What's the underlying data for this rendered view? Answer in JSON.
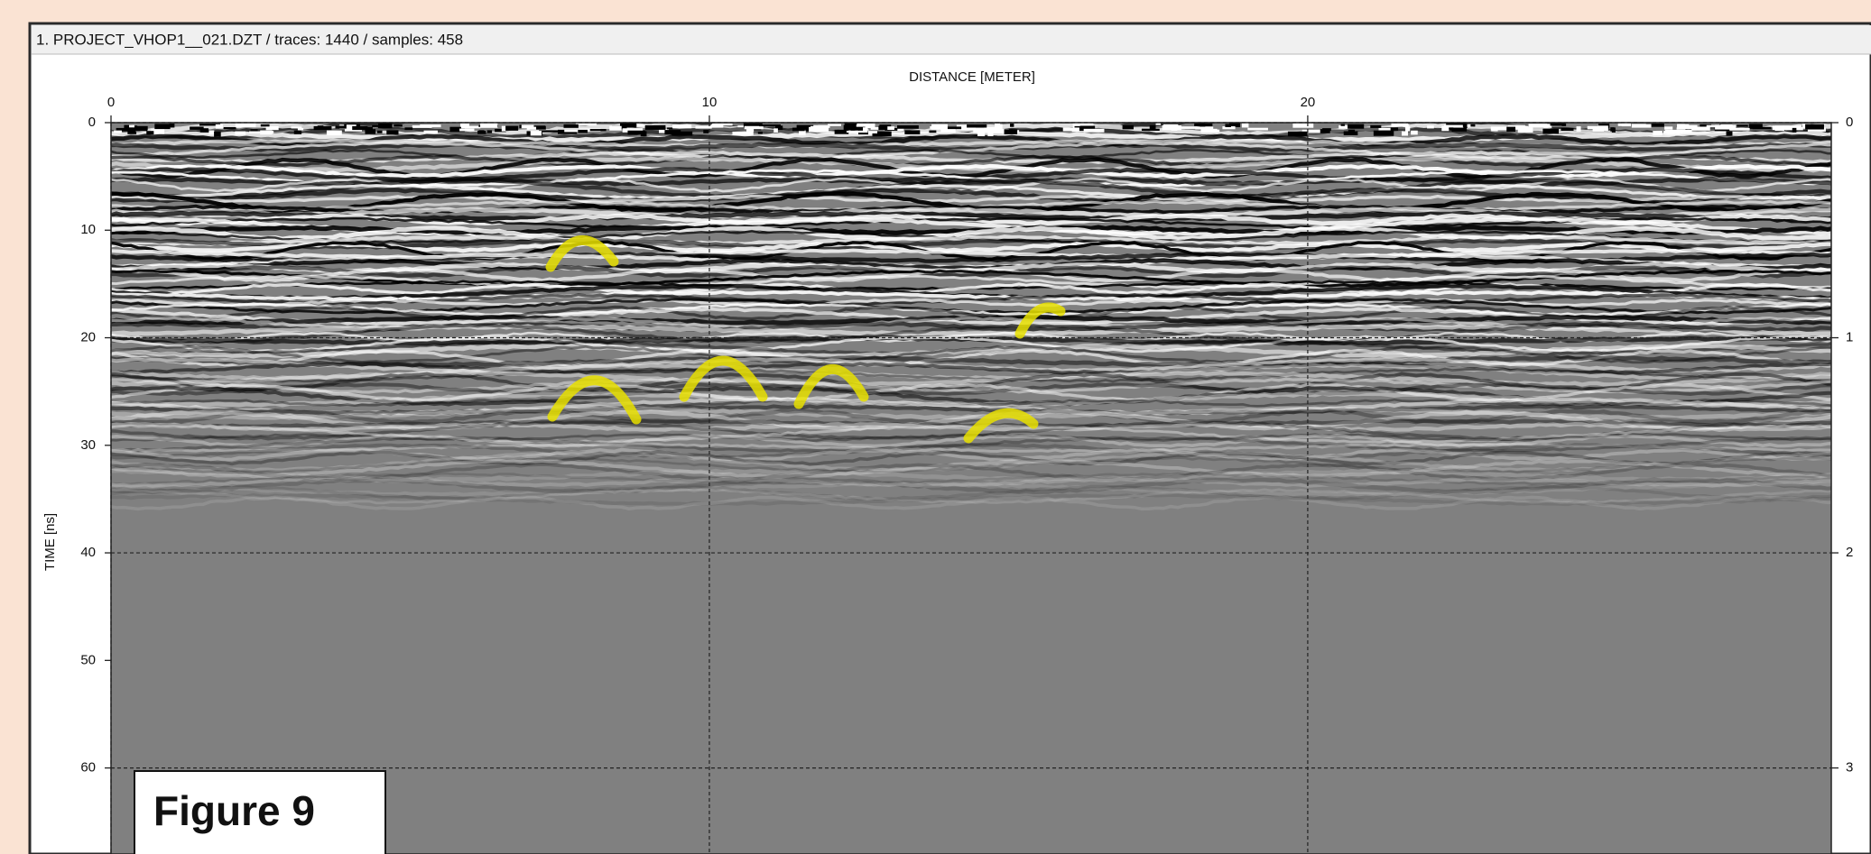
{
  "chart_data": {
    "type": "radargram",
    "title": "1. PROJECT_VHOP1__021.DZT / traces: 1440 / samples: 458",
    "x_label": "DISTANCE [METER]",
    "y_label": "TIME [ns]",
    "xlim": [
      0,
      28.75
    ],
    "xticks": [
      0,
      10,
      20
    ],
    "ylim": [
      0,
      68
    ],
    "yticks": [
      0,
      10,
      20,
      30,
      40,
      50,
      60
    ],
    "y2lim": [
      0,
      3.4
    ],
    "y2ticks": [
      0,
      1,
      2,
      3
    ],
    "grid": true,
    "annotation": "Figure 9"
  }
}
